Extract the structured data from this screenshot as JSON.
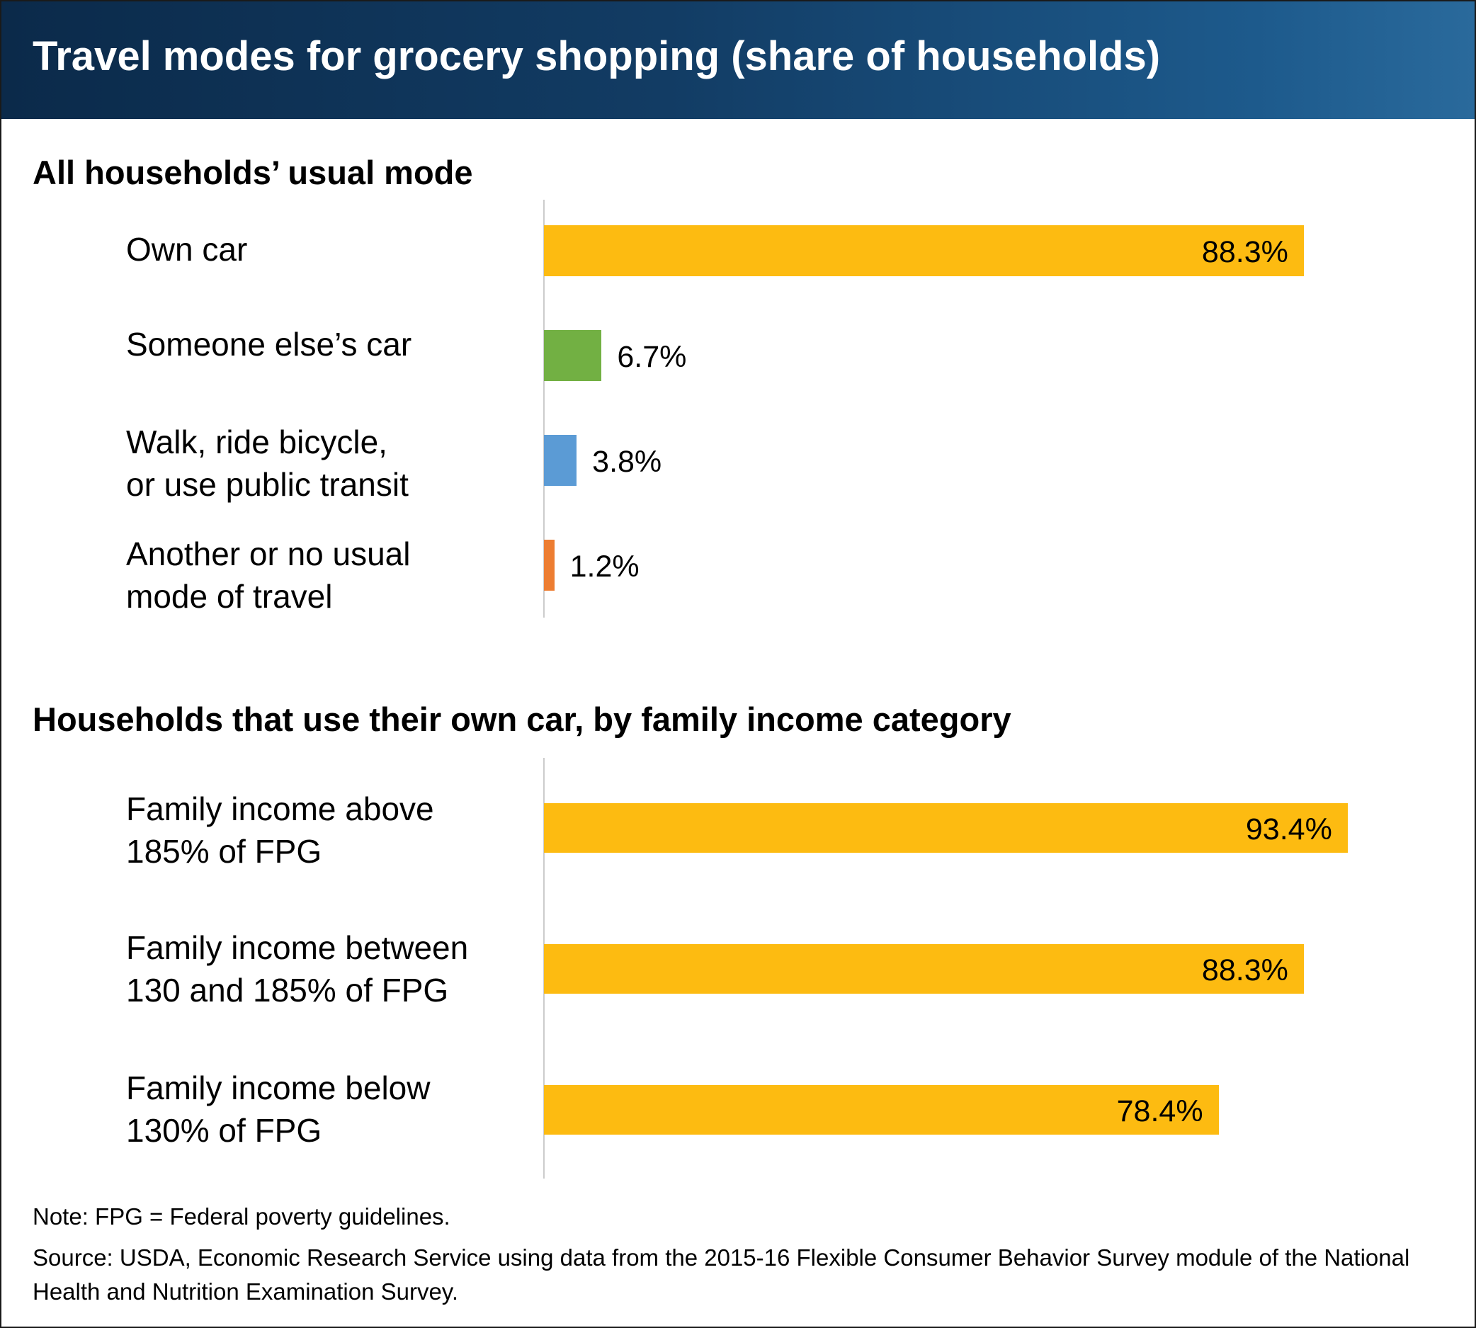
{
  "header": {
    "title": "Travel modes for grocery shopping (share of households)"
  },
  "colors": {
    "header_dark": "#0b2a4a",
    "header_light": "#2a6a9c",
    "gold": "#fdbb11",
    "green": "#72b043",
    "blue": "#5b9bd5",
    "orange": "#ed7d31",
    "axis": "#cccccc"
  },
  "chart_data": [
    {
      "type": "bar",
      "orientation": "horizontal",
      "title": "All households’ usual mode",
      "xlim": [
        0,
        100
      ],
      "grid": false,
      "categories": [
        "Own car",
        "Someone else’s car",
        "Walk, ride bicycle,\nor use public transit",
        "Another or no usual\nmode of travel"
      ],
      "values": [
        88.3,
        6.7,
        3.8,
        1.2
      ],
      "value_labels": [
        "88.3%",
        "6.7%",
        "3.8%",
        "1.2%"
      ],
      "colors": [
        "#fdbb11",
        "#72b043",
        "#5b9bd5",
        "#ed7d31"
      ]
    },
    {
      "type": "bar",
      "orientation": "horizontal",
      "title": "Households that use their own car, by family income category",
      "xlim": [
        0,
        100
      ],
      "grid": false,
      "categories": [
        "Family income above\n185% of FPG",
        "Family income between\n130 and 185% of FPG",
        "Family income below\n130% of FPG"
      ],
      "values": [
        93.4,
        88.3,
        78.4
      ],
      "value_labels": [
        "93.4%",
        "88.3%",
        "78.4%"
      ],
      "colors": [
        "#fdbb11",
        "#fdbb11",
        "#fdbb11"
      ]
    }
  ],
  "notes": {
    "note": "Note: FPG = Federal poverty guidelines.",
    "source": "Source: USDA, Economic Research Service using data from the 2015-16 Flexible Consumer Behavior Survey module of the National Health and Nutrition Examination Survey."
  }
}
